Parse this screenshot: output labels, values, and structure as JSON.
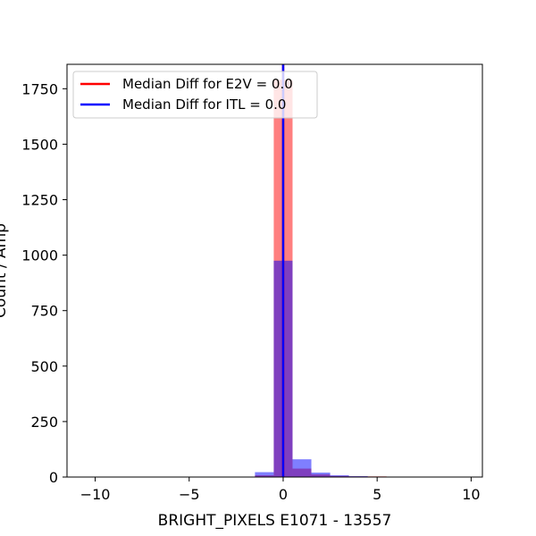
{
  "chart_data": {
    "type": "bar",
    "title": "",
    "xlabel": "BRIGHT_PIXELS E1071 - 13557",
    "ylabel": "Count / Amp",
    "xlim": [
      -11.5,
      10.6
    ],
    "ylim": [
      0,
      1860
    ],
    "x_ticks": [
      -10,
      -5,
      0,
      5,
      10
    ],
    "x_tick_labels": [
      "−10",
      "−5",
      "0",
      "5",
      "10"
    ],
    "y_ticks": [
      0,
      250,
      500,
      750,
      1000,
      1250,
      1500,
      1750
    ],
    "y_tick_labels": [
      "0",
      "250",
      "500",
      "750",
      "1000",
      "1250",
      "1500",
      "1750"
    ],
    "bin_width": 1,
    "series": [
      {
        "name": "E2V",
        "color": "#ff0000",
        "alpha": 0.5,
        "bins": [
          {
            "x": -1,
            "y": 8
          },
          {
            "x": 0,
            "y": 1790
          },
          {
            "x": 1,
            "y": 38
          },
          {
            "x": 2,
            "y": 12
          },
          {
            "x": 3,
            "y": 5
          },
          {
            "x": 4,
            "y": 3
          },
          {
            "x": 5,
            "y": 3
          },
          {
            "x": 7,
            "y": 2
          }
        ]
      },
      {
        "name": "ITL",
        "color": "#0000ff",
        "alpha": 0.5,
        "bins": [
          {
            "x": -1,
            "y": 22
          },
          {
            "x": 0,
            "y": 975
          },
          {
            "x": 1,
            "y": 80
          },
          {
            "x": 2,
            "y": 20
          },
          {
            "x": 3,
            "y": 8
          },
          {
            "x": 4,
            "y": 4
          },
          {
            "x": 5,
            "y": 2
          }
        ]
      }
    ],
    "median_lines": [
      {
        "label": "Median Diff for E2V = 0.0",
        "x": 0.0,
        "color": "#ff0000"
      },
      {
        "label": "Median Diff for ITL = 0.0",
        "x": 0.0,
        "color": "#0000ff"
      }
    ],
    "legend_placement": "upper-left",
    "grid": false
  }
}
